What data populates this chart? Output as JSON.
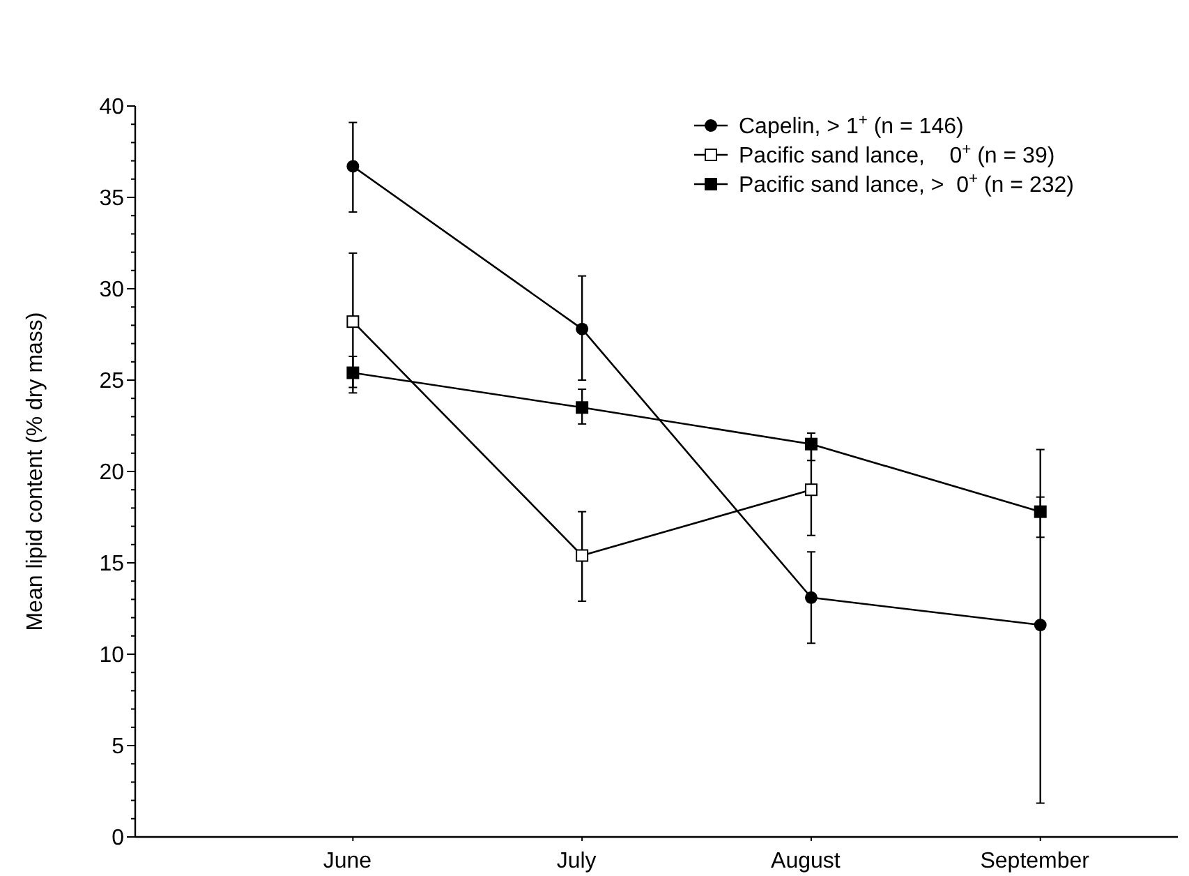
{
  "chart_data": {
    "type": "line",
    "ylabel": "Mean lipid content (% dry mass)",
    "categories": [
      "June",
      "July",
      "August",
      "September"
    ],
    "ylim": [
      0,
      40
    ],
    "yticks": [
      0,
      {
        "value": 1,
        "label": null
      },
      {
        "value": 2,
        "label": null
      },
      {
        "value": 3,
        "label": null
      },
      {
        "value": 4,
        "label": null
      },
      5,
      {
        "value": 6,
        "label": null
      },
      {
        "value": 7,
        "label": null
      },
      {
        "value": 8,
        "label": null
      },
      {
        "value": 9,
        "label": null
      },
      10,
      {
        "value": 11,
        "label": null
      },
      {
        "value": 12,
        "label": null
      },
      {
        "value": 13,
        "label": null
      },
      {
        "value": 14,
        "label": null
      },
      15,
      {
        "value": 16,
        "label": null
      },
      {
        "value": 17,
        "label": null
      },
      {
        "value": 18,
        "label": null
      },
      {
        "value": 19,
        "label": null
      },
      20,
      {
        "value": 21,
        "label": null
      },
      {
        "value": 22,
        "label": null
      },
      {
        "value": 23,
        "label": null
      },
      {
        "value": 24,
        "label": null
      },
      25,
      {
        "value": 26,
        "label": null
      },
      {
        "value": 27,
        "label": null
      },
      {
        "value": 28,
        "label": null
      },
      {
        "value": 29,
        "label": null
      },
      30,
      {
        "value": 31,
        "label": null
      },
      {
        "value": 32,
        "label": null
      },
      {
        "value": 33,
        "label": null
      },
      {
        "value": 34,
        "label": null
      },
      35,
      {
        "value": 36,
        "label": null
      },
      {
        "value": 37,
        "label": null
      },
      {
        "value": 38,
        "label": null
      },
      {
        "value": 39,
        "label": null
      },
      40
    ],
    "grid": false,
    "legend": "top right",
    "line_style": "solid",
    "series": [
      {
        "name": "Capelin, > 1$^{+}$ (n = 146)",
        "color": "#000000",
        "marker": "circle",
        "values": [
          36.7,
          27.8,
          13.1,
          11.6
        ],
        "errors": [
          [
            34.2,
            39.1
          ],
          [
            25.0,
            30.7
          ],
          [
            10.6,
            15.6
          ],
          [
            1.85,
            21.2
          ]
        ]
      },
      {
        "name": "Pacific sand lance,    0$^{+}$ (n = 39)",
        "color": "#000000",
        "marker": "square-open",
        "values": [
          28.2,
          15.4,
          19.0,
          null
        ],
        "errors": [
          [
            24.6,
            31.95
          ],
          [
            12.9,
            17.8
          ],
          [
            16.5,
            21.7
          ],
          null
        ]
      },
      {
        "name": "Pacific sand lance, >  0$^{+}$ (n = 232)",
        "color": "#000000",
        "marker": "square",
        "values": [
          25.4,
          23.5,
          21.5,
          17.8
        ],
        "errors": [
          [
            24.3,
            26.3
          ],
          [
            22.6,
            24.5
          ],
          [
            20.6,
            22.1
          ],
          [
            16.4,
            18.6
          ]
        ]
      }
    ]
  }
}
